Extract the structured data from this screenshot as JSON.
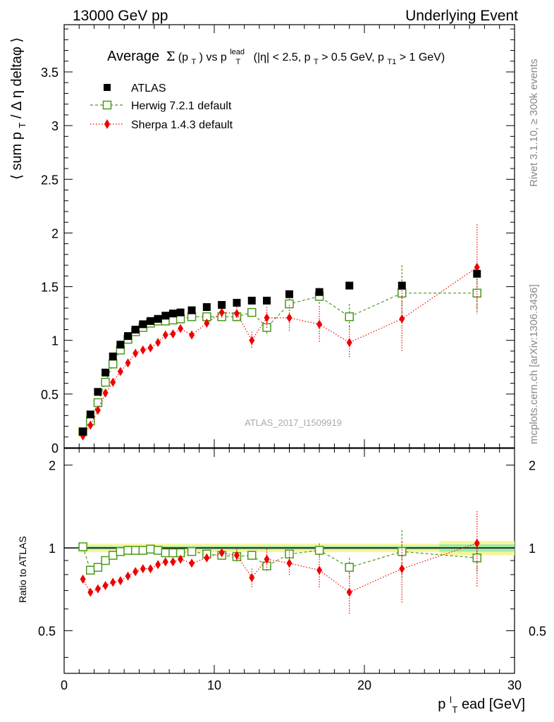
{
  "header": {
    "left": "13000 GeV pp",
    "right": "Underlying Event"
  },
  "side_labels": {
    "rivet": "Rivet 3.1.10, ≥ 300k events",
    "mcplots": "mcplots.cern.ch [arXiv:1306.3436]"
  },
  "chart_data": [
    {
      "type": "scatter",
      "panel": "main",
      "title": {
        "prefix": "Average",
        "sigma": "Σ",
        "p": "(p",
        "p_sub": "T",
        "p_close": ")",
        "vs": " vs p",
        "vs_sup": "lead",
        "vs_sub": "T",
        "cond1": " (|η| < 2.5, p",
        "cond1_sub": "T",
        "cond2": " > 0.5 GeV, p",
        "cond2_sub": "T1",
        "cond3": " > 1 GeV)"
      },
      "ylabel": {
        "a": "⟨ sum p",
        "sub": "T",
        "b": " / Δ η deltaφ ⟩"
      },
      "watermark": "ATLAS_2017_I1509919",
      "xlim": [
        0,
        30
      ],
      "ylim": [
        0,
        3.94
      ],
      "x_ticks": [
        0,
        10,
        20,
        30
      ],
      "y_ticks": [
        "0",
        "0.5",
        "1",
        "1.5",
        "2",
        "2.5",
        "3",
        "3.5"
      ],
      "y_tick_values": [
        0,
        0.5,
        1,
        1.5,
        2,
        2.5,
        3,
        3.5
      ],
      "legend_position": "top-left",
      "series": [
        {
          "name": "ATLAS",
          "color": "#000000",
          "marker": "square-filled",
          "x": [
            1.25,
            1.75,
            2.25,
            2.75,
            3.25,
            3.75,
            4.25,
            4.75,
            5.25,
            5.75,
            6.25,
            6.75,
            7.25,
            7.75,
            8.5,
            9.5,
            10.5,
            11.5,
            12.5,
            13.5,
            15,
            17,
            19,
            22.5,
            27.5
          ],
          "y": [
            0.15,
            0.31,
            0.52,
            0.7,
            0.85,
            0.96,
            1.04,
            1.1,
            1.15,
            1.18,
            1.2,
            1.23,
            1.25,
            1.26,
            1.28,
            1.31,
            1.33,
            1.35,
            1.37,
            1.37,
            1.43,
            1.45,
            1.51,
            1.51,
            1.62
          ]
        },
        {
          "name": "Herwig 7.2.1 default",
          "color": "#4a9a1a",
          "marker": "square-open",
          "line": "dashed",
          "x": [
            1.25,
            1.75,
            2.25,
            2.75,
            3.25,
            3.75,
            4.25,
            4.75,
            5.25,
            5.75,
            6.25,
            6.75,
            7.25,
            7.75,
            8.5,
            9.5,
            10.5,
            11.5,
            12.5,
            13.5,
            15,
            17,
            19,
            22.5,
            27.5
          ],
          "y": [
            0.15,
            0.25,
            0.42,
            0.61,
            0.78,
            0.91,
            1.01,
            1.08,
            1.12,
            1.16,
            1.18,
            1.18,
            1.19,
            1.2,
            1.22,
            1.22,
            1.22,
            1.22,
            1.26,
            1.12,
            1.34,
            1.41,
            1.22,
            1.44,
            1.44
          ],
          "err": [
            0.01,
            0.01,
            0.01,
            0.01,
            0.01,
            0.01,
            0.01,
            0.01,
            0.01,
            0.01,
            0.01,
            0.01,
            0.01,
            0.01,
            0.02,
            0.02,
            0.03,
            0.03,
            0.04,
            0.06,
            0.05,
            0.08,
            0.12,
            0.26,
            0.2
          ]
        },
        {
          "name": "Sherpa 1.4.3 default",
          "color": "#ee0000",
          "marker": "diamond-filled",
          "line": "dotted",
          "x": [
            1.25,
            1.75,
            2.25,
            2.75,
            3.25,
            3.75,
            4.25,
            4.75,
            5.25,
            5.75,
            6.25,
            6.75,
            7.25,
            7.75,
            8.5,
            9.5,
            10.5,
            11.5,
            12.5,
            13.5,
            15,
            17,
            19,
            22.5,
            27.5
          ],
          "y": [
            0.11,
            0.21,
            0.35,
            0.51,
            0.61,
            0.71,
            0.79,
            0.88,
            0.91,
            0.93,
            0.98,
            1.05,
            1.06,
            1.11,
            1.05,
            1.16,
            1.26,
            1.25,
            1.0,
            1.21,
            1.21,
            1.15,
            0.98,
            1.2,
            1.68
          ],
          "err": [
            0.01,
            0.01,
            0.01,
            0.01,
            0.01,
            0.01,
            0.01,
            0.01,
            0.01,
            0.01,
            0.02,
            0.02,
            0.02,
            0.03,
            0.03,
            0.04,
            0.05,
            0.06,
            0.08,
            0.1,
            0.12,
            0.17,
            0.15,
            0.31,
            0.4
          ]
        }
      ]
    },
    {
      "type": "scatter",
      "panel": "ratio",
      "ylabel": "Ratio to ATLAS",
      "xlabel": {
        "a": "p",
        "sup": "l",
        "sub": "T",
        "b": "ead [GeV]"
      },
      "xlim": [
        0,
        30
      ],
      "ylim": [
        0.35,
        2.3
      ],
      "x_tick_labels": [
        "0",
        "10",
        "20",
        "30"
      ],
      "x_tick_values": [
        0,
        10,
        20,
        30
      ],
      "y_tick_labels": [
        "0.5",
        "1",
        "2"
      ],
      "y_tick_values": [
        0.5,
        1,
        2
      ],
      "reference_band": [
        {
          "x0": 1.0,
          "x1": 25.0,
          "inner": 0.015,
          "outer": 0.035
        },
        {
          "x0": 25.0,
          "x1": 30.0,
          "inner": 0.03,
          "outer": 0.06
        }
      ],
      "series": [
        {
          "name": "Herwig 7.2.1 default",
          "color": "#4a9a1a",
          "marker": "square-open",
          "line": "dashed",
          "x": [
            1.25,
            1.75,
            2.25,
            2.75,
            3.25,
            3.75,
            4.25,
            4.75,
            5.25,
            5.75,
            6.25,
            6.75,
            7.25,
            7.75,
            8.5,
            9.5,
            10.5,
            11.5,
            12.5,
            13.5,
            15,
            17,
            19,
            22.5,
            27.5
          ],
          "y": [
            1.01,
            0.83,
            0.85,
            0.9,
            0.94,
            0.97,
            0.98,
            0.98,
            0.98,
            0.99,
            0.98,
            0.96,
            0.96,
            0.96,
            0.97,
            0.95,
            0.94,
            0.93,
            0.94,
            0.86,
            0.95,
            0.98,
            0.85,
            0.97,
            0.92
          ],
          "err": [
            0.01,
            0.01,
            0.01,
            0.01,
            0.01,
            0.01,
            0.01,
            0.01,
            0.01,
            0.01,
            0.01,
            0.01,
            0.01,
            0.01,
            0.01,
            0.02,
            0.02,
            0.02,
            0.03,
            0.04,
            0.03,
            0.06,
            0.07,
            0.19,
            0.11
          ]
        },
        {
          "name": "Sherpa 1.4.3 default",
          "color": "#ee0000",
          "marker": "diamond-filled",
          "line": "dotted",
          "x": [
            1.25,
            1.75,
            2.25,
            2.75,
            3.25,
            3.75,
            4.25,
            4.75,
            5.25,
            5.75,
            6.25,
            6.75,
            7.25,
            7.75,
            8.5,
            9.5,
            10.5,
            11.5,
            12.5,
            13.5,
            15,
            17,
            19,
            22.5,
            27.5
          ],
          "y": [
            0.77,
            0.69,
            0.71,
            0.73,
            0.75,
            0.76,
            0.79,
            0.82,
            0.84,
            0.84,
            0.87,
            0.89,
            0.89,
            0.91,
            0.88,
            0.92,
            0.96,
            0.94,
            0.78,
            0.91,
            0.88,
            0.83,
            0.69,
            0.84,
            1.04
          ],
          "err": [
            0.01,
            0.01,
            0.01,
            0.01,
            0.01,
            0.01,
            0.01,
            0.01,
            0.01,
            0.01,
            0.01,
            0.02,
            0.02,
            0.02,
            0.02,
            0.03,
            0.04,
            0.05,
            0.06,
            0.08,
            0.09,
            0.12,
            0.12,
            0.21,
            0.32
          ]
        }
      ]
    }
  ]
}
